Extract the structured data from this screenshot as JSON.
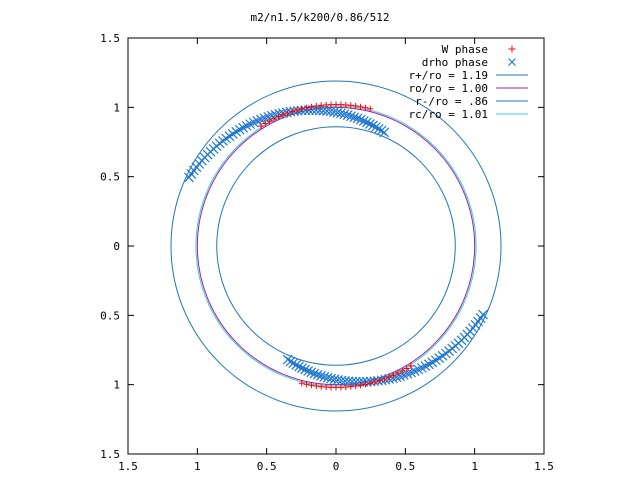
{
  "chart_data": {
    "type": "scatter",
    "title": "m2/n1.5/k200/0.86/512",
    "xlabel": "",
    "ylabel": "",
    "xlim": [
      -1.5,
      1.5
    ],
    "ylim": [
      -1.5,
      1.5
    ],
    "grid": false,
    "legend_position": "top-right",
    "x_tick_labels": [
      "1.5",
      "1",
      "0.5",
      "0",
      "0.5",
      "1",
      "1.5"
    ],
    "x_tick_values": [
      -1.5,
      -1,
      -0.5,
      0,
      0.5,
      1,
      1.5
    ],
    "y_tick_labels": [
      "1.5",
      "1",
      "0.5",
      "0",
      "0.5",
      "1",
      "1.5"
    ],
    "y_tick_values": [
      1.5,
      1,
      0.5,
      0,
      -0.5,
      -1,
      -1.5
    ],
    "series": [
      {
        "name": "W phase",
        "kind": "points",
        "marker": "plus",
        "color": "#ff0000",
        "arcs": [
          {
            "r_start": 1.02,
            "r_end": 1.02,
            "theta_start_deg": 122,
            "theta_end_deg": 76,
            "n": 24
          },
          {
            "r_start": 1.02,
            "r_end": 1.02,
            "theta_start_deg": 302,
            "theta_end_deg": 256,
            "n": 24
          }
        ]
      },
      {
        "name": "drho phase",
        "kind": "points",
        "marker": "cross",
        "color": "#1f77d0",
        "arcs": [
          {
            "r_start": 1.17,
            "r_end": 0.89,
            "theta_start_deg": 155,
            "theta_end_deg": 67,
            "n": 60
          },
          {
            "r_start": 1.17,
            "r_end": 0.89,
            "theta_start_deg": 335,
            "theta_end_deg": 247,
            "n": 60
          }
        ]
      },
      {
        "name": "r+/ro = 1.19",
        "kind": "circle",
        "radius": 1.19,
        "color": "#1f77b4"
      },
      {
        "name": "ro/ro = 1.00",
        "kind": "circle",
        "radius": 1.0,
        "color": "#a020a0"
      },
      {
        "name": "r-/ro = .86",
        "kind": "circle",
        "radius": 0.86,
        "color": "#1f77b4"
      },
      {
        "name": "rc/ro = 1.01",
        "kind": "circle",
        "radius": 1.01,
        "color": "#40c8e8"
      }
    ]
  }
}
